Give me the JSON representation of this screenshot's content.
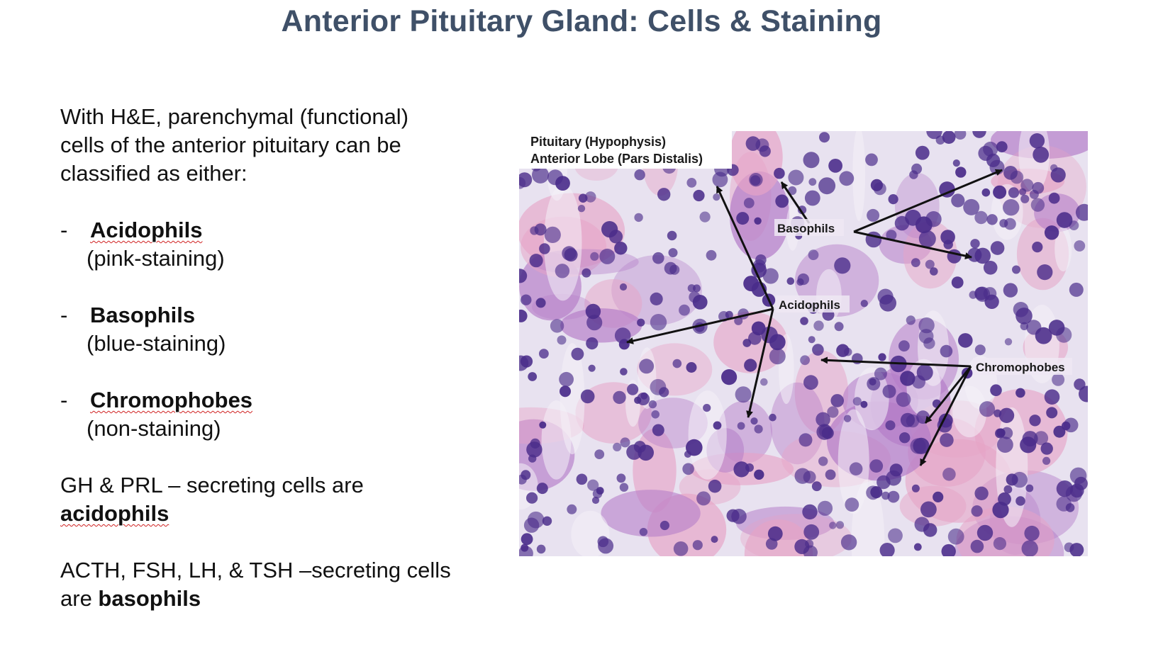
{
  "slide": {
    "title": "Anterior Pituitary Gland: Cells & Staining",
    "intro": "With H&E, parenchymal (functional) cells of the anterior pituitary can be classified as either:",
    "bullets": [
      {
        "dash": "-",
        "term": "Acidophils",
        "note": "(pink-staining)"
      },
      {
        "dash": "-",
        "term": "Basophils",
        "note": "(blue-staining)"
      },
      {
        "dash": "-",
        "term": "Chromophobes",
        "note": "(non-staining)"
      }
    ],
    "para1": {
      "prefix": "GH & PRL – secreting cells are",
      "bold": "acidophils"
    },
    "para2": {
      "prefix": "ACTH, FSH, LH, & TSH –secreting cells are ",
      "bold": "basophils"
    }
  },
  "figure": {
    "caption_line1": "Pituitary (Hypophysis)",
    "caption_line2": "Anterior Lobe (Pars Distalis)",
    "labels": {
      "basophils": "Basophils",
      "acidophils": "Acidophils",
      "chromophobes": "Chromophobes"
    },
    "colors": {
      "background": "#e8e2f0",
      "pink": "#e6a3c6",
      "purple": "#b47cc8",
      "nucleus": "#4a2c8a",
      "arrow": "#111111"
    }
  }
}
